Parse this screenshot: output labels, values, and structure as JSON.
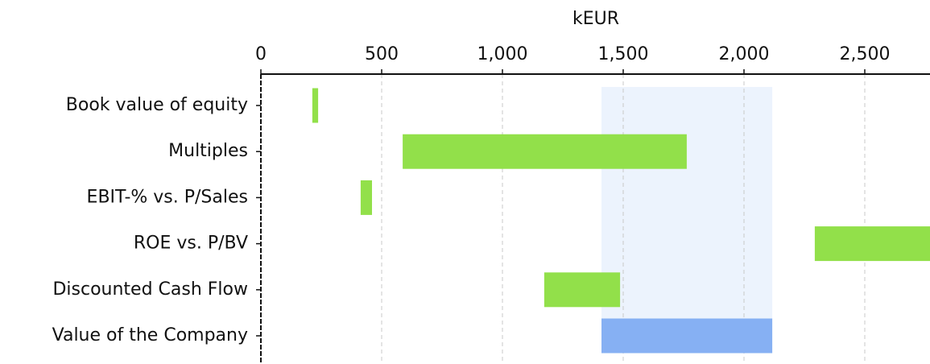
{
  "chart_data": {
    "type": "range-bar",
    "x_label": "kEUR",
    "categories": [
      "Book value of equity",
      "Multiples",
      "EBIT-% vs. P/Sales",
      "ROE vs. P/BV",
      "Discounted Cash Flow",
      "Value of the Company"
    ],
    "low": [
      213,
      587,
      413,
      2293,
      1173,
      1410
    ],
    "high": [
      237,
      1763,
      460,
      2770,
      1487,
      2117
    ],
    "colors": [
      "#92e04a",
      "#92e04a",
      "#92e04a",
      "#92e04a",
      "#92e04a",
      "#86b0f3"
    ],
    "highlight_color": "#ecf3fd",
    "xlim": [
      0,
      2770
    ],
    "xticks": [
      0,
      500,
      {
        "value": 1000,
        "label": "1,000"
      },
      {
        "value": 1500,
        "label": "1,500"
      },
      {
        "value": 2000,
        "label": "2,000"
      },
      {
        "value": 2500,
        "label": "2,500"
      }
    ],
    "grid": true
  }
}
